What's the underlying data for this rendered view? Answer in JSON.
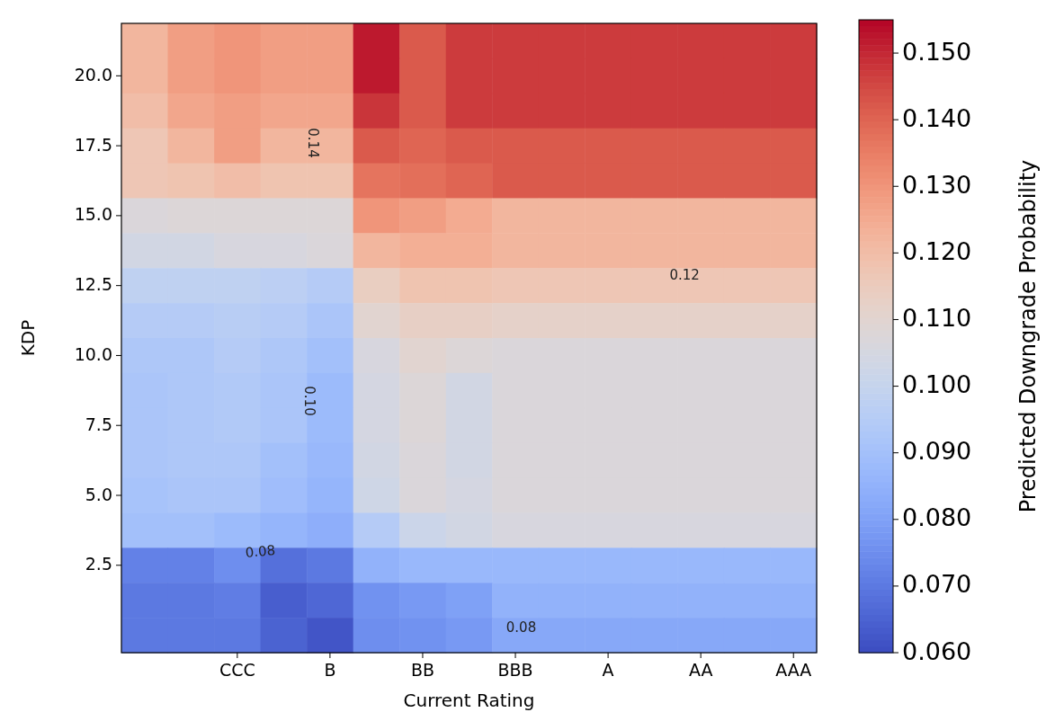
{
  "chart_data": {
    "type": "heatmap",
    "xlabel": "Current Rating",
    "ylabel": "KDP",
    "clabel": "Predicted Downgrade Probability",
    "categories": [
      null,
      null,
      "CCC",
      null,
      "B",
      null,
      "BB",
      null,
      "BBB",
      null,
      "A",
      null,
      "AA",
      null,
      "AAA"
    ],
    "y_categories": [
      null,
      "20.0",
      null,
      "17.5",
      null,
      "15.0",
      null,
      "12.5",
      null,
      "10.0",
      null,
      "7.5",
      null,
      "5.0",
      null,
      "2.5",
      null,
      null
    ],
    "cells": [
      [
        0.122,
        0.128,
        0.13,
        0.128,
        0.128,
        0.152,
        0.142,
        0.147,
        0.147,
        0.147,
        0.147,
        0.147,
        0.147,
        0.147,
        0.147
      ],
      [
        0.122,
        0.128,
        0.13,
        0.128,
        0.128,
        0.152,
        0.142,
        0.147,
        0.147,
        0.147,
        0.147,
        0.147,
        0.147,
        0.147,
        0.147
      ],
      [
        0.12,
        0.126,
        0.128,
        0.126,
        0.126,
        0.148,
        0.142,
        0.147,
        0.147,
        0.147,
        0.147,
        0.147,
        0.147,
        0.147,
        0.147
      ],
      [
        0.117,
        0.122,
        0.128,
        0.122,
        0.122,
        0.142,
        0.14,
        0.142,
        0.142,
        0.142,
        0.142,
        0.142,
        0.142,
        0.142,
        0.142
      ],
      [
        0.117,
        0.118,
        0.12,
        0.118,
        0.118,
        0.137,
        0.138,
        0.14,
        0.142,
        0.142,
        0.142,
        0.142,
        0.142,
        0.142,
        0.142
      ],
      [
        0.107,
        0.108,
        0.108,
        0.108,
        0.108,
        0.13,
        0.128,
        0.125,
        0.122,
        0.122,
        0.122,
        0.122,
        0.122,
        0.122,
        0.122
      ],
      [
        0.104,
        0.104,
        0.106,
        0.106,
        0.107,
        0.122,
        0.124,
        0.124,
        0.122,
        0.122,
        0.122,
        0.122,
        0.122,
        0.122,
        0.122
      ],
      [
        0.098,
        0.098,
        0.098,
        0.097,
        0.095,
        0.114,
        0.118,
        0.118,
        0.117,
        0.117,
        0.117,
        0.117,
        0.117,
        0.117,
        0.117
      ],
      [
        0.095,
        0.095,
        0.096,
        0.095,
        0.092,
        0.11,
        0.113,
        0.113,
        0.112,
        0.112,
        0.112,
        0.112,
        0.112,
        0.112,
        0.112
      ],
      [
        0.093,
        0.093,
        0.095,
        0.093,
        0.09,
        0.106,
        0.11,
        0.108,
        0.107,
        0.107,
        0.107,
        0.107,
        0.107,
        0.107,
        0.107
      ],
      [
        0.092,
        0.093,
        0.094,
        0.092,
        0.088,
        0.105,
        0.108,
        0.104,
        0.107,
        0.107,
        0.107,
        0.107,
        0.107,
        0.107,
        0.107
      ],
      [
        0.092,
        0.093,
        0.094,
        0.092,
        0.088,
        0.105,
        0.108,
        0.104,
        0.107,
        0.107,
        0.107,
        0.107,
        0.107,
        0.107,
        0.107
      ],
      [
        0.092,
        0.093,
        0.093,
        0.09,
        0.087,
        0.104,
        0.107,
        0.104,
        0.107,
        0.107,
        0.107,
        0.107,
        0.107,
        0.107,
        0.107
      ],
      [
        0.091,
        0.092,
        0.092,
        0.089,
        0.086,
        0.103,
        0.107,
        0.105,
        0.107,
        0.107,
        0.107,
        0.107,
        0.107,
        0.107,
        0.107
      ],
      [
        0.09,
        0.09,
        0.088,
        0.086,
        0.084,
        0.095,
        0.102,
        0.104,
        0.106,
        0.106,
        0.106,
        0.106,
        0.106,
        0.106,
        0.106
      ],
      [
        0.072,
        0.072,
        0.075,
        0.068,
        0.07,
        0.085,
        0.087,
        0.087,
        0.087,
        0.087,
        0.087,
        0.087,
        0.087,
        0.087,
        0.087
      ],
      [
        0.07,
        0.07,
        0.071,
        0.064,
        0.066,
        0.076,
        0.078,
        0.08,
        0.085,
        0.085,
        0.085,
        0.085,
        0.085,
        0.085,
        0.085
      ],
      [
        0.07,
        0.07,
        0.07,
        0.065,
        0.062,
        0.075,
        0.076,
        0.078,
        0.082,
        0.082,
        0.082,
        0.082,
        0.082,
        0.082,
        0.082
      ]
    ],
    "clim": [
      0.06,
      0.155
    ],
    "cticks": [
      {
        "value": 0.06,
        "label": "0.060"
      },
      {
        "value": 0.07,
        "label": "0.070"
      },
      {
        "value": 0.08,
        "label": "0.080"
      },
      {
        "value": 0.09,
        "label": "0.090"
      },
      {
        "value": 0.1,
        "label": "0.100"
      },
      {
        "value": 0.11,
        "label": "0.110"
      },
      {
        "value": 0.12,
        "label": "0.120"
      },
      {
        "value": 0.13,
        "label": "0.130"
      },
      {
        "value": 0.14,
        "label": "0.140"
      },
      {
        "value": 0.15,
        "label": "0.150"
      }
    ],
    "annotations": [
      "0.14",
      "0.10",
      "0.08",
      "0.08",
      "0.12"
    ]
  }
}
